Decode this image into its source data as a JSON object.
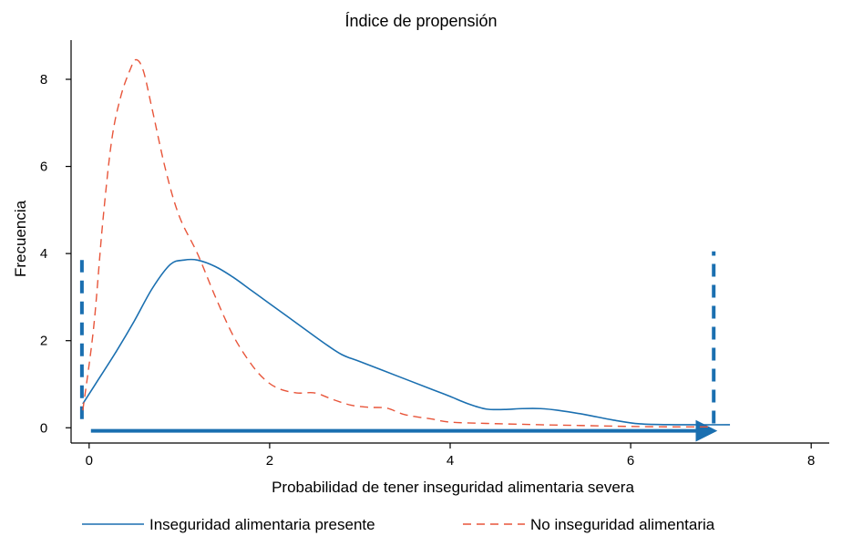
{
  "chart_data": {
    "type": "line",
    "title": "Índice de propensión",
    "xlabel": "Probabilidad de tener inseguridad alimentaria severa",
    "ylabel": "Frecuencia",
    "xlim": [
      -0.2,
      8.2
    ],
    "ylim": [
      -0.35,
      8.9
    ],
    "xticks": [
      0,
      2,
      4,
      6,
      8
    ],
    "yticks": [
      0,
      2,
      4,
      6,
      8
    ],
    "grid": false,
    "legend_position": "bottom",
    "series": [
      {
        "name": "Inseguridad alimentaria presente",
        "color": "#1a6fb0",
        "style": "solid",
        "x": [
          -0.07,
          0.1,
          0.3,
          0.5,
          0.7,
          0.9,
          1.05,
          1.2,
          1.4,
          1.6,
          1.8,
          2.0,
          2.3,
          2.6,
          2.8,
          3.0,
          3.4,
          3.8,
          4.0,
          4.2,
          4.4,
          4.6,
          4.8,
          5.0,
          5.2,
          5.5,
          5.8,
          6.1,
          6.5,
          7.1
        ],
        "y": [
          0.55,
          1.1,
          1.75,
          2.45,
          3.2,
          3.75,
          3.85,
          3.85,
          3.7,
          3.45,
          3.15,
          2.85,
          2.4,
          1.95,
          1.68,
          1.52,
          1.2,
          0.88,
          0.72,
          0.55,
          0.43,
          0.42,
          0.44,
          0.44,
          0.4,
          0.3,
          0.18,
          0.09,
          0.07,
          0.07
        ]
      },
      {
        "name": "No inseguridad alimentaria",
        "color": "#e8553a",
        "style": "dashed",
        "x": [
          -0.07,
          0.05,
          0.15,
          0.25,
          0.35,
          0.45,
          0.52,
          0.6,
          0.7,
          0.85,
          1.0,
          1.2,
          1.4,
          1.6,
          1.8,
          1.95,
          2.1,
          2.3,
          2.5,
          2.7,
          2.9,
          3.1,
          3.3,
          3.5,
          3.8,
          4.0,
          4.4,
          5.0,
          5.5,
          6.0,
          6.5,
          6.9
        ],
        "y": [
          0.4,
          2.3,
          4.7,
          6.6,
          7.6,
          8.2,
          8.45,
          8.2,
          7.3,
          5.9,
          4.85,
          4.0,
          3.0,
          2.1,
          1.45,
          1.1,
          0.9,
          0.8,
          0.8,
          0.65,
          0.52,
          0.47,
          0.45,
          0.3,
          0.2,
          0.13,
          0.1,
          0.07,
          0.05,
          0.03,
          0.02,
          0.02
        ]
      }
    ],
    "annotations": [
      {
        "type": "vline",
        "x": -0.08,
        "y_range": [
          0.2,
          3.85
        ],
        "style": "dashed",
        "color": "#1a6fb0"
      },
      {
        "type": "vline",
        "x": 6.92,
        "y_range": [
          0.1,
          4.05
        ],
        "style": "dashed",
        "color": "#1a6fb0"
      },
      {
        "type": "arrow",
        "x_range": [
          0.02,
          6.88
        ],
        "y": -0.07,
        "color": "#1a6fb0"
      }
    ]
  }
}
